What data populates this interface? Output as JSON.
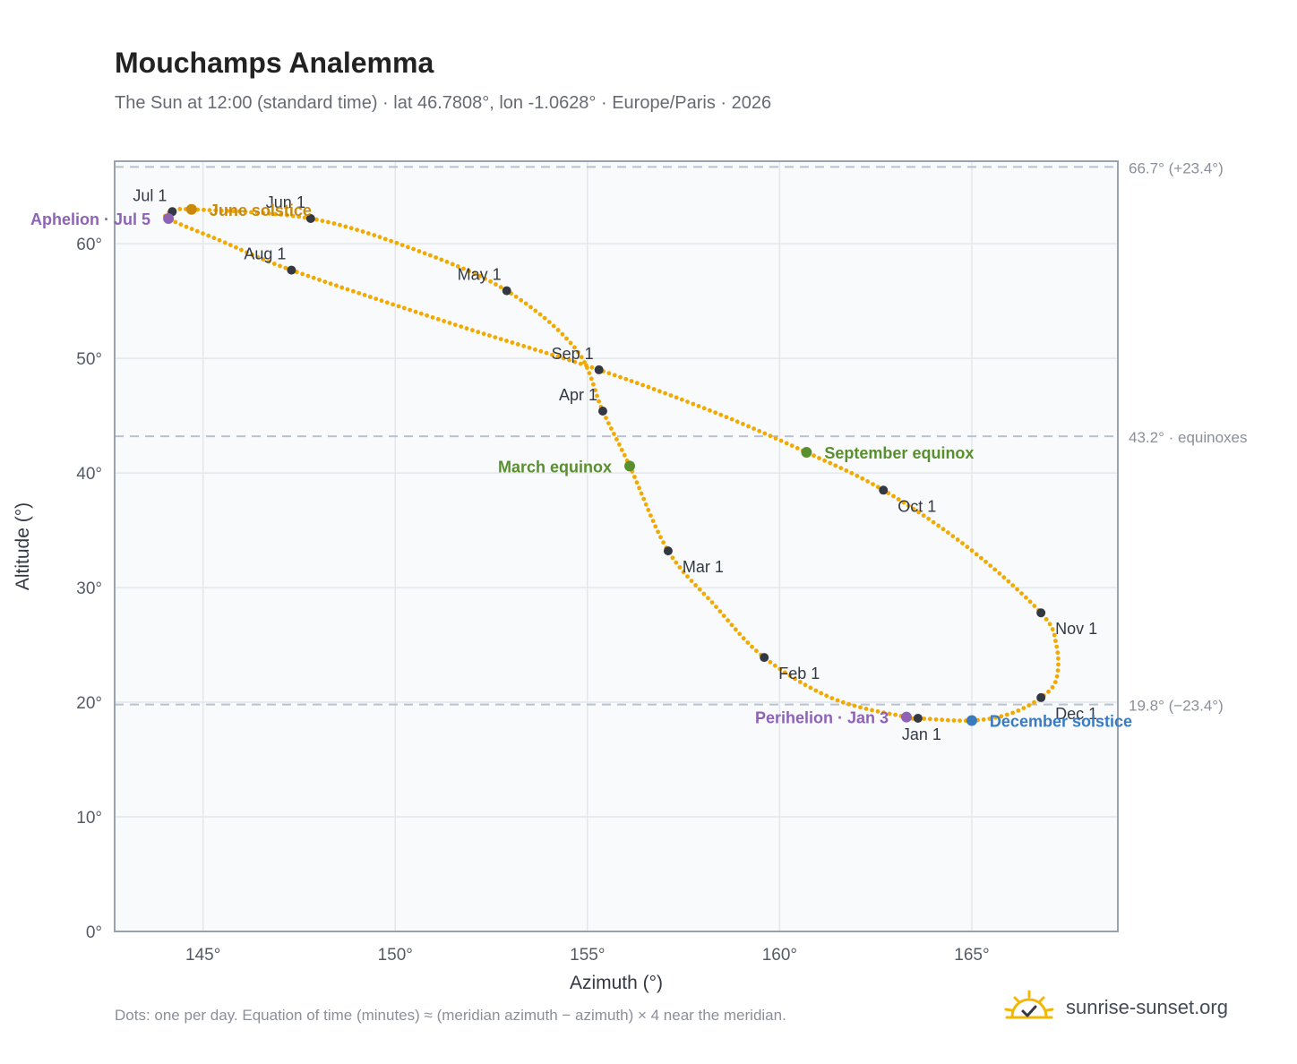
{
  "header": {
    "title": "Mouchamps Analemma",
    "subtitle": "The Sun at 12:00 (standard time) · lat 46.7808°, lon -1.0628° · Europe/Paris · 2026"
  },
  "footer": {
    "note": "Dots: one per day. Equation of time (minutes) ≈ (meridian azimuth − azimuth) × 4 near the meridian.",
    "brand": "sunrise-sunset.org"
  },
  "colors": {
    "curve": "#f2a900",
    "month_dot": "#333842",
    "equinox": "#5a8f2e",
    "june_solstice": "#c98a0b",
    "december_solstice": "#3a7bbf",
    "apsis": "#8e63b5",
    "reference_line": "#b9c2cc",
    "grid": "#e3e7ec",
    "plot_bg": "#f8fafc",
    "frame": "#98a2b0",
    "logo": "#f2b705"
  },
  "chart_data": {
    "type": "scatter",
    "title": "Mouchamps Analemma",
    "xlabel": "Azimuth (°)",
    "ylabel": "Altitude (°)",
    "xlim": [
      142.7,
      168.8
    ],
    "ylim": [
      0,
      67.2
    ],
    "grid": true,
    "x_ticks": [
      145,
      150,
      155,
      160,
      165
    ],
    "x_tick_labels": [
      "145°",
      "150°",
      "155°",
      "160°",
      "165°"
    ],
    "y_ticks": [
      0,
      10,
      20,
      30,
      40,
      50,
      60
    ],
    "y_tick_labels": [
      "0°",
      "10°",
      "20°",
      "30°",
      "40°",
      "50°",
      "60°"
    ],
    "reference_lines": [
      {
        "y": 66.7,
        "label": "66.7° (+23.4°)"
      },
      {
        "y": 43.2,
        "label": "43.2° · equinoxes"
      },
      {
        "y": 19.8,
        "label": "19.8° (−23.4°)"
      }
    ],
    "series": [
      {
        "style": "daily-dots",
        "note": "one dot per day, closed loop",
        "path": [
          {
            "x": 165.0,
            "y": 18.4
          },
          {
            "x": 163.6,
            "y": 18.6
          },
          {
            "x": 163.3,
            "y": 18.7
          },
          {
            "x": 161.4,
            "y": 20.3
          },
          {
            "x": 159.6,
            "y": 23.9
          },
          {
            "x": 158.3,
            "y": 28.5
          },
          {
            "x": 157.1,
            "y": 33.2
          },
          {
            "x": 156.1,
            "y": 40.6
          },
          {
            "x": 155.4,
            "y": 45.4
          },
          {
            "x": 154.7,
            "y": 50.8
          },
          {
            "x": 152.9,
            "y": 55.9
          },
          {
            "x": 150.5,
            "y": 59.5
          },
          {
            "x": 147.8,
            "y": 62.2
          },
          {
            "x": 144.7,
            "y": 63.0
          },
          {
            "x": 144.2,
            "y": 62.8
          },
          {
            "x": 144.1,
            "y": 62.2
          },
          {
            "x": 145.5,
            "y": 60.2
          },
          {
            "x": 147.3,
            "y": 57.7
          },
          {
            "x": 151.5,
            "y": 53.0
          },
          {
            "x": 155.3,
            "y": 49.0
          },
          {
            "x": 158.3,
            "y": 45.3
          },
          {
            "x": 160.7,
            "y": 41.8
          },
          {
            "x": 162.7,
            "y": 38.5
          },
          {
            "x": 164.9,
            "y": 33.5
          },
          {
            "x": 166.8,
            "y": 27.8
          },
          {
            "x": 167.2,
            "y": 25.0
          },
          {
            "x": 167.2,
            "y": 22.0
          },
          {
            "x": 166.8,
            "y": 20.4
          },
          {
            "x": 166.0,
            "y": 19.0
          },
          {
            "x": 165.0,
            "y": 18.4
          }
        ]
      }
    ],
    "month_markers": [
      {
        "label": "Jan 1",
        "x": 163.6,
        "y": 18.6,
        "pos": "below"
      },
      {
        "label": "Feb 1",
        "x": 159.6,
        "y": 23.9,
        "pos": "below-right"
      },
      {
        "label": "Mar 1",
        "x": 157.1,
        "y": 33.2,
        "pos": "below-right"
      },
      {
        "label": "Apr 1",
        "x": 155.4,
        "y": 45.4,
        "pos": "above-left"
      },
      {
        "label": "May 1",
        "x": 152.9,
        "y": 55.9,
        "pos": "above-left"
      },
      {
        "label": "Jun 1",
        "x": 147.8,
        "y": 62.2,
        "pos": "above-left"
      },
      {
        "label": "Jul 1",
        "x": 144.2,
        "y": 62.8,
        "pos": "above-left"
      },
      {
        "label": "Aug 1",
        "x": 147.3,
        "y": 57.7,
        "pos": "above-left"
      },
      {
        "label": "Sep 1",
        "x": 155.3,
        "y": 49.0,
        "pos": "above-left"
      },
      {
        "label": "Oct 1",
        "x": 162.7,
        "y": 38.5,
        "pos": "below-right"
      },
      {
        "label": "Nov 1",
        "x": 166.8,
        "y": 27.8,
        "pos": "below-right"
      },
      {
        "label": "Dec 1",
        "x": 166.8,
        "y": 20.4,
        "pos": "below-right"
      }
    ],
    "events": [
      {
        "label": "March equinox",
        "x": 156.1,
        "y": 40.6,
        "color": "#5a8f2e",
        "pos": "left"
      },
      {
        "label": "September equinox",
        "x": 160.7,
        "y": 41.8,
        "color": "#5a8f2e",
        "pos": "right"
      },
      {
        "label": "June solstice",
        "x": 144.7,
        "y": 63.0,
        "color": "#c98a0b",
        "pos": "right"
      },
      {
        "label": "December solstice",
        "x": 165.0,
        "y": 18.4,
        "color": "#3a7bbf",
        "pos": "right"
      },
      {
        "label": "Aphelion · Jul 5",
        "x": 144.1,
        "y": 62.2,
        "color": "#8e63b5",
        "pos": "left"
      },
      {
        "label": "Perihelion · Jan 3",
        "x": 163.3,
        "y": 18.7,
        "color": "#8e63b5",
        "pos": "left"
      }
    ]
  }
}
